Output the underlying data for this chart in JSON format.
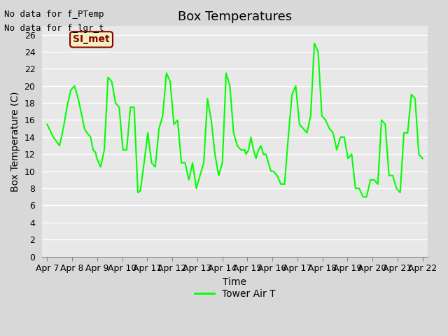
{
  "title": "Box Temperatures",
  "xlabel": "Time",
  "ylabel": "Box Temperature (C)",
  "no_data_texts": [
    "No data for f_PTemp",
    "No data for f_lgr_t"
  ],
  "si_met_label": "SI_met",
  "background_color": "#d8d8d8",
  "plot_bg_color": "#e8e8e8",
  "line_color": "#00ff00",
  "ylim": [
    0,
    27
  ],
  "yticks": [
    0,
    2,
    4,
    6,
    8,
    10,
    12,
    14,
    16,
    18,
    20,
    22,
    24,
    26
  ],
  "x_labels": [
    "Apr 7",
    "Apr 8",
    "Apr 9",
    "Apr 10",
    "Apr 11",
    "Apr 12",
    "Apr 13",
    "Apr 14",
    "Apr 15",
    "Apr 16",
    "Apr 17",
    "Apr 18",
    "Apr 19",
    "Apr 20",
    "Apr 21",
    "Apr 22"
  ],
  "legend_label": "Tower Air T",
  "x_values": [
    0,
    0.5,
    1,
    1.3,
    1.6,
    1.9,
    2.2,
    2.5,
    2.8,
    3.0,
    3.2,
    3.5,
    3.7,
    3.9,
    4.0,
    4.3,
    4.6,
    4.9,
    5.2,
    5.5,
    5.8,
    6.1,
    6.4,
    6.7,
    7.0,
    7.3,
    7.5,
    7.8,
    8.1,
    8.4,
    8.7,
    9.0,
    9.3,
    9.6,
    9.9,
    10.2,
    10.5,
    10.8,
    11.1,
    11.4,
    11.7,
    12.0,
    12.3,
    12.6,
    12.9,
    13.2,
    13.5,
    13.8,
    14.1,
    14.4,
    14.7,
    15.0,
    15.3,
    15.6,
    15.9,
    16.0,
    16.2,
    16.4,
    16.6,
    16.8,
    17.0,
    17.2,
    17.4,
    17.6,
    17.8,
    18.0,
    18.2,
    18.5,
    18.8,
    19.1,
    19.4,
    19.7,
    20.0,
    20.3,
    20.6,
    20.9,
    21.2,
    21.5,
    21.8,
    22.1,
    22.4,
    22.7,
    23.0,
    23.3,
    23.6,
    23.9,
    24.2,
    24.5,
    24.8,
    25.1,
    25.4,
    25.7,
    26.0,
    26.3,
    26.6,
    26.9,
    27.2,
    27.5,
    27.8,
    28.1,
    28.4,
    28.7,
    29.0,
    29.3,
    29.6,
    29.9,
    30.2
  ],
  "y_values": [
    15.5,
    14.0,
    13.0,
    15.0,
    17.5,
    19.5,
    20.0,
    18.5,
    16.5,
    15.0,
    14.5,
    14.0,
    12.5,
    12.2,
    11.5,
    10.5,
    12.5,
    21.0,
    20.5,
    18.0,
    17.5,
    12.5,
    12.5,
    17.5,
    17.5,
    7.5,
    7.7,
    11.0,
    14.5,
    11.0,
    10.5,
    15.0,
    16.5,
    21.5,
    20.5,
    15.5,
    16.0,
    11.0,
    11.0,
    9.0,
    11.0,
    8.0,
    9.5,
    11.0,
    18.5,
    16.0,
    12.0,
    9.5,
    11.0,
    21.5,
    20.0,
    14.5,
    13.0,
    12.5,
    12.5,
    12.0,
    12.5,
    14.0,
    12.5,
    11.5,
    12.5,
    13.0,
    12.0,
    12.0,
    11.0,
    10.0,
    10.0,
    9.5,
    8.5,
    8.5,
    14.0,
    19.0,
    20.0,
    15.5,
    15.0,
    14.5,
    16.5,
    25.0,
    24.0,
    16.5,
    16.0,
    15.0,
    14.5,
    12.5,
    14.0,
    14.0,
    11.5,
    12.0,
    8.0,
    8.0,
    7.0,
    7.0,
    9.0,
    9.0,
    8.5,
    16.0,
    15.5,
    9.5,
    9.5,
    8.0,
    7.5,
    14.5,
    14.5,
    19.0,
    18.5,
    12.0,
    11.5
  ],
  "x_tick_positions": [
    0,
    1,
    2,
    3,
    4,
    5,
    6,
    7,
    8,
    9,
    10,
    11,
    12,
    13,
    14,
    15
  ],
  "title_fontsize": 13,
  "axis_fontsize": 10,
  "tick_fontsize": 9
}
